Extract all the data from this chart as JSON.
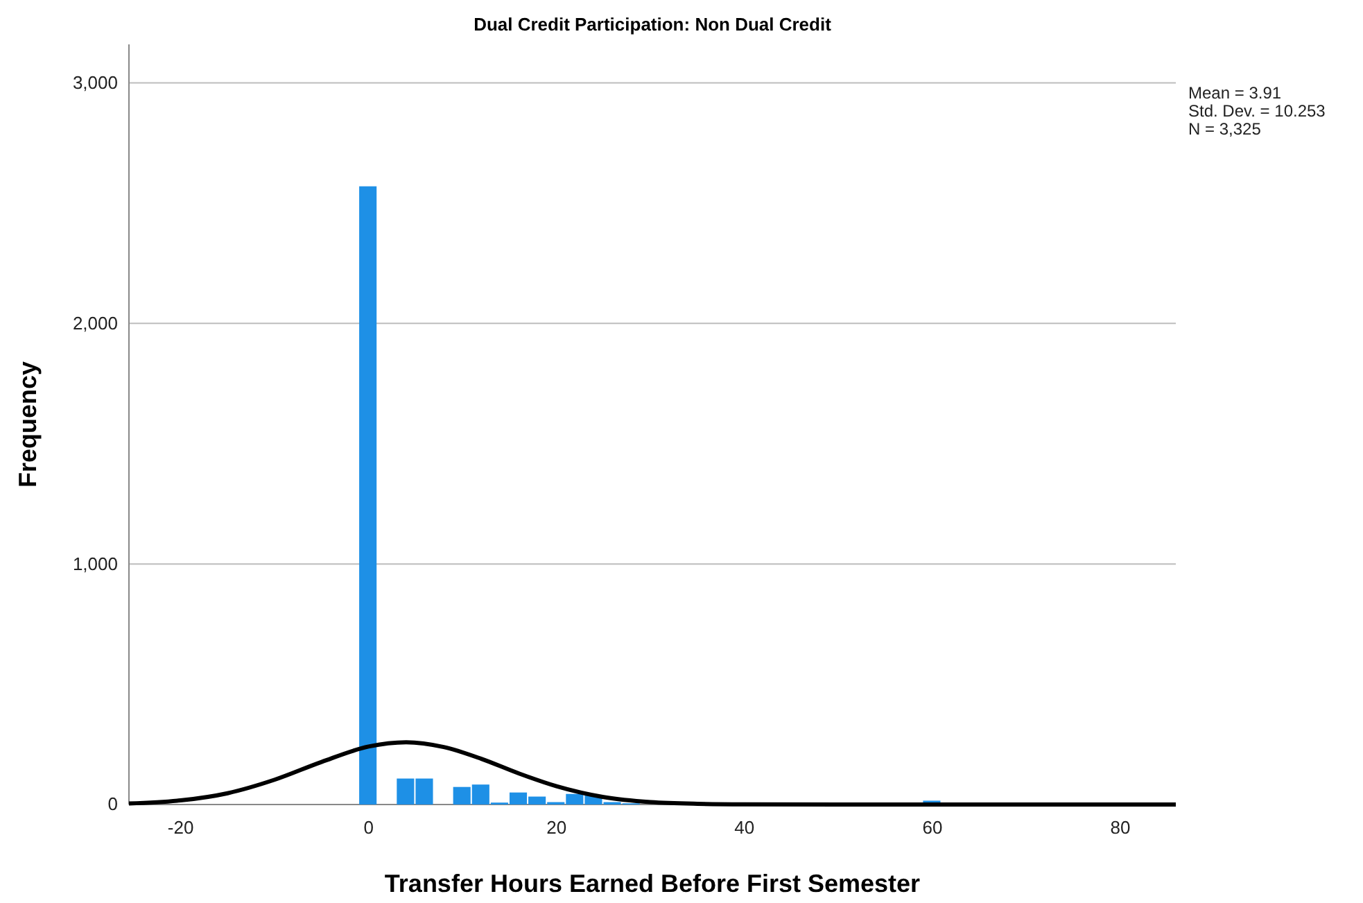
{
  "chart_data": {
    "type": "histogram",
    "title": "Dual Credit Participation: Non Dual Credit",
    "xlabel": "Transfer Hours Earned Before First Semester",
    "ylabel": "Frequency",
    "bins": [
      -1,
      1,
      3,
      5,
      7,
      9,
      11,
      13,
      15,
      17,
      19,
      21,
      23,
      25,
      27,
      29,
      31,
      33,
      35,
      37,
      39,
      41,
      43,
      45,
      47,
      49,
      51,
      53,
      55,
      57,
      59,
      61
    ],
    "values": [
      2570,
      0,
      108,
      108,
      0,
      73,
      83,
      8,
      50,
      33,
      10,
      44,
      40,
      10,
      5,
      0,
      0,
      0,
      0,
      0,
      0,
      0,
      0,
      0,
      0,
      0,
      0,
      0,
      0,
      0,
      16
    ],
    "color": "#1e90e6",
    "series": [
      {
        "type": "line",
        "color": "#000000",
        "x": [
          -25.5,
          -20,
          -15,
          -10,
          -5,
          0,
          4,
          8,
          12,
          16,
          20,
          25,
          30,
          35,
          40,
          50,
          60,
          70,
          85.9
        ],
        "values": [
          4,
          17,
          47,
          103,
          177,
          241,
          259,
          239,
          190,
          129,
          76,
          31,
          10,
          3,
          1,
          0,
          0,
          0,
          0
        ]
      }
    ],
    "xlim": [
      -25.5,
      85.9
    ],
    "xticks": [
      -20,
      0,
      20,
      40,
      60,
      80
    ],
    "ylim": [
      0,
      3160
    ],
    "yticks": [
      0,
      {
        "value": 1000,
        "label": "1,000"
      },
      {
        "value": 2000,
        "label": "2,000"
      },
      {
        "value": 3000,
        "label": "3,000"
      }
    ],
    "grid": "y",
    "line_style": "solid",
    "marker": "none",
    "annotations": [
      "Mean = 3.91",
      "Std. Dev. = 10.253",
      "N = 3,325"
    ]
  }
}
